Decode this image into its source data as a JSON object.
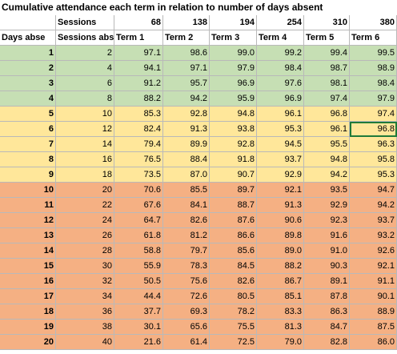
{
  "title": "Cumulative attendance each term in relation to number of days absent",
  "sessions_label": "Sessions",
  "sessions_values": [
    "68",
    "138",
    "194",
    "254",
    "310",
    "380"
  ],
  "headers": [
    "Days abse",
    "Sessions abs",
    "Term 1",
    "Term 2",
    "Term 3",
    "Term 4",
    "Term 5",
    "Term 6"
  ],
  "rows": [
    [
      "1",
      "2",
      "97.1",
      "98.6",
      "99.0",
      "99.2",
      "99.4",
      "99.5"
    ],
    [
      "2",
      "4",
      "94.1",
      "97.1",
      "97.9",
      "98.4",
      "98.7",
      "98.9"
    ],
    [
      "3",
      "6",
      "91.2",
      "95.7",
      "96.9",
      "97.6",
      "98.1",
      "98.4"
    ],
    [
      "4",
      "8",
      "88.2",
      "94.2",
      "95.9",
      "96.9",
      "97.4",
      "97.9"
    ],
    [
      "5",
      "10",
      "85.3",
      "92.8",
      "94.8",
      "96.1",
      "96.8",
      "97.4"
    ],
    [
      "6",
      "12",
      "82.4",
      "91.3",
      "93.8",
      "95.3",
      "96.1",
      "96.8"
    ],
    [
      "7",
      "14",
      "79.4",
      "89.9",
      "92.8",
      "94.5",
      "95.5",
      "96.3"
    ],
    [
      "8",
      "16",
      "76.5",
      "88.4",
      "91.8",
      "93.7",
      "94.8",
      "95.8"
    ],
    [
      "9",
      "18",
      "73.5",
      "87.0",
      "90.7",
      "92.9",
      "94.2",
      "95.3"
    ],
    [
      "10",
      "20",
      "70.6",
      "85.5",
      "89.7",
      "92.1",
      "93.5",
      "94.7"
    ],
    [
      "11",
      "22",
      "67.6",
      "84.1",
      "88.7",
      "91.3",
      "92.9",
      "94.2"
    ],
    [
      "12",
      "24",
      "64.7",
      "82.6",
      "87.6",
      "90.6",
      "92.3",
      "93.7"
    ],
    [
      "13",
      "26",
      "61.8",
      "81.2",
      "86.6",
      "89.8",
      "91.6",
      "93.2"
    ],
    [
      "14",
      "28",
      "58.8",
      "79.7",
      "85.6",
      "89.0",
      "91.0",
      "92.6"
    ],
    [
      "15",
      "30",
      "55.9",
      "78.3",
      "84.5",
      "88.2",
      "90.3",
      "92.1"
    ],
    [
      "16",
      "32",
      "50.5",
      "75.6",
      "82.6",
      "86.7",
      "89.1",
      "91.1"
    ],
    [
      "17",
      "34",
      "44.4",
      "72.6",
      "80.5",
      "85.1",
      "87.8",
      "90.1"
    ],
    [
      "18",
      "36",
      "37.7",
      "69.3",
      "78.2",
      "83.3",
      "86.3",
      "88.9"
    ],
    [
      "19",
      "38",
      "30.1",
      "65.6",
      "75.5",
      "81.3",
      "84.7",
      "87.5"
    ],
    [
      "20",
      "40",
      "21.6",
      "61.4",
      "72.5",
      "79.0",
      "82.8",
      "86.0"
    ]
  ],
  "row_fill": [
    "green",
    "green",
    "green",
    "green",
    "yellow",
    "yellow",
    "yellow",
    "yellow",
    "yellow",
    "orange",
    "orange",
    "orange",
    "orange",
    "orange",
    "orange",
    "orange",
    "orange",
    "orange",
    "orange",
    "orange"
  ],
  "colors": {
    "green": "#c6dfb4",
    "yellow": "#ffe79a",
    "orange": "#f5b083",
    "selected_border": "#1f7a3a"
  },
  "selected_cell": {
    "row": 6,
    "column": "Term 6"
  }
}
